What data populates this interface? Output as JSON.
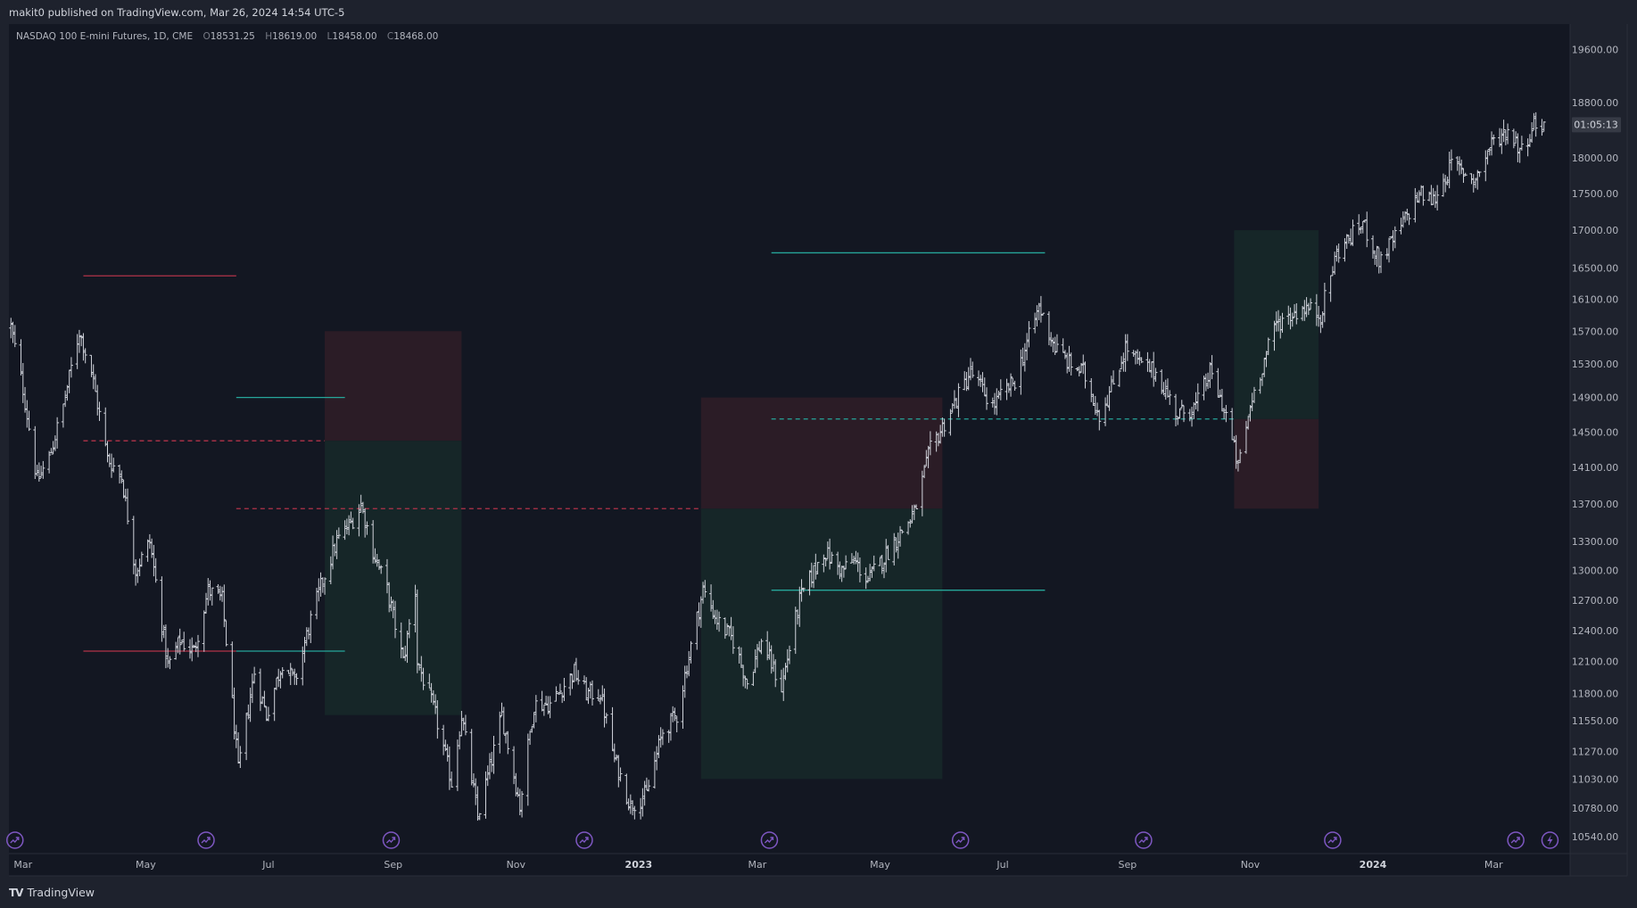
{
  "header": {
    "published": "makit0 published on TradingView.com, Mar 26, 2024 14:54 UTC-5"
  },
  "legend": {
    "symbol": "NASDAQ 100 E-mini Futures, 1D, CME",
    "o_label": "O",
    "o_value": "18531.25",
    "h_label": "H",
    "h_value": "18619.00",
    "l_label": "L",
    "l_value": "18458.00",
    "c_label": "C",
    "c_value": "18468.00"
  },
  "price_axis": {
    "labels": [
      "19600.00",
      "18800.00",
      "18000.00",
      "17500.00",
      "17000.00",
      "16500.00",
      "16100.00",
      "15700.00",
      "15300.00",
      "14900.00",
      "14500.00",
      "14100.00",
      "13700.00",
      "13300.00",
      "13000.00",
      "12700.00",
      "12400.00",
      "12100.00",
      "11800.00",
      "11550.00",
      "11270.00",
      "11030.00",
      "10780.00",
      "10540.00"
    ],
    "countdown": "01:05:13",
    "last_price": 18468
  },
  "time_axis": {
    "labels": [
      {
        "text": "Mar",
        "bold": false
      },
      {
        "text": "May",
        "bold": false
      },
      {
        "text": "Jul",
        "bold": false
      },
      {
        "text": "Sep",
        "bold": false
      },
      {
        "text": "Nov",
        "bold": false
      },
      {
        "text": "2023",
        "bold": true
      },
      {
        "text": "Mar",
        "bold": false
      },
      {
        "text": "May",
        "bold": false
      },
      {
        "text": "Jul",
        "bold": false
      },
      {
        "text": "Sep",
        "bold": false
      },
      {
        "text": "Nov",
        "bold": false
      },
      {
        "text": "2024",
        "bold": true
      },
      {
        "text": "Mar",
        "bold": false
      }
    ]
  },
  "chart_data": {
    "type": "ohlc",
    "symbol": "NQ1!",
    "timeframe": "1D",
    "scale": "log",
    "ylim": [
      10400,
      20000
    ],
    "series": [
      {
        "name": "NASDAQ 100 E-mini Futures",
        "anchors": [
          {
            "d": "2022-02-23",
            "p": 15750
          },
          {
            "d": "2022-03-01",
            "p": 15000
          },
          {
            "d": "2022-03-08",
            "p": 13950
          },
          {
            "d": "2022-03-14",
            "p": 14200
          },
          {
            "d": "2022-03-21",
            "p": 14800
          },
          {
            "d": "2022-03-29",
            "p": 15700
          },
          {
            "d": "2022-04-04",
            "p": 15200
          },
          {
            "d": "2022-04-12",
            "p": 14200
          },
          {
            "d": "2022-04-19",
            "p": 14000
          },
          {
            "d": "2022-04-26",
            "p": 13000
          },
          {
            "d": "2022-05-03",
            "p": 13300
          },
          {
            "d": "2022-05-12",
            "p": 12050
          },
          {
            "d": "2022-05-18",
            "p": 12300
          },
          {
            "d": "2022-05-25",
            "p": 12200
          },
          {
            "d": "2022-06-01",
            "p": 12800
          },
          {
            "d": "2022-06-08",
            "p": 12700
          },
          {
            "d": "2022-06-16",
            "p": 11100
          },
          {
            "d": "2022-06-24",
            "p": 12000
          },
          {
            "d": "2022-06-30",
            "p": 11600
          },
          {
            "d": "2022-07-08",
            "p": 12100
          },
          {
            "d": "2022-07-14",
            "p": 11900
          },
          {
            "d": "2022-07-22",
            "p": 12500
          },
          {
            "d": "2022-07-28",
            "p": 12900
          },
          {
            "d": "2022-08-04",
            "p": 13300
          },
          {
            "d": "2022-08-11",
            "p": 13500
          },
          {
            "d": "2022-08-16",
            "p": 13700
          },
          {
            "d": "2022-08-22",
            "p": 13200
          },
          {
            "d": "2022-08-29",
            "p": 12800
          },
          {
            "d": "2022-09-06",
            "p": 12100
          },
          {
            "d": "2022-09-12",
            "p": 12800
          },
          {
            "d": "2022-09-13",
            "p": 12100
          },
          {
            "d": "2022-09-22",
            "p": 11600
          },
          {
            "d": "2022-09-30",
            "p": 11000
          },
          {
            "d": "2022-10-05",
            "p": 11600
          },
          {
            "d": "2022-10-13",
            "p": 10700
          },
          {
            "d": "2022-10-20",
            "p": 11200
          },
          {
            "d": "2022-10-25",
            "p": 11600
          },
          {
            "d": "2022-11-03",
            "p": 10800
          },
          {
            "d": "2022-11-10",
            "p": 11700
          },
          {
            "d": "2022-11-18",
            "p": 11700
          },
          {
            "d": "2022-11-30",
            "p": 12000
          },
          {
            "d": "2022-12-06",
            "p": 11800
          },
          {
            "d": "2022-12-13",
            "p": 11800
          },
          {
            "d": "2022-12-20",
            "p": 11200
          },
          {
            "d": "2022-12-28",
            "p": 10800
          },
          {
            "d": "2023-01-05",
            "p": 10900
          },
          {
            "d": "2023-01-13",
            "p": 11450
          },
          {
            "d": "2023-01-20",
            "p": 11600
          },
          {
            "d": "2023-02-02",
            "p": 12800
          },
          {
            "d": "2023-02-09",
            "p": 12500
          },
          {
            "d": "2023-02-17",
            "p": 12300
          },
          {
            "d": "2023-02-24",
            "p": 11900
          },
          {
            "d": "2023-03-03",
            "p": 12300
          },
          {
            "d": "2023-03-13",
            "p": 11850
          },
          {
            "d": "2023-03-22",
            "p": 12700
          },
          {
            "d": "2023-04-03",
            "p": 13200
          },
          {
            "d": "2023-04-12",
            "p": 13000
          },
          {
            "d": "2023-04-18",
            "p": 13100
          },
          {
            "d": "2023-04-25",
            "p": 12900
          },
          {
            "d": "2023-05-05",
            "p": 13200
          },
          {
            "d": "2023-05-18",
            "p": 13600
          },
          {
            "d": "2023-05-26",
            "p": 14300
          },
          {
            "d": "2023-06-02",
            "p": 14600
          },
          {
            "d": "2023-06-15",
            "p": 15200
          },
          {
            "d": "2023-06-26",
            "p": 14800
          },
          {
            "d": "2023-07-07",
            "p": 15100
          },
          {
            "d": "2023-07-19",
            "p": 16000
          },
          {
            "d": "2023-07-27",
            "p": 15500
          },
          {
            "d": "2023-08-03",
            "p": 15300
          },
          {
            "d": "2023-08-10",
            "p": 15200
          },
          {
            "d": "2023-08-18",
            "p": 14700
          },
          {
            "d": "2023-08-24",
            "p": 15000
          },
          {
            "d": "2023-08-31",
            "p": 15500
          },
          {
            "d": "2023-09-07",
            "p": 15300
          },
          {
            "d": "2023-09-15",
            "p": 15200
          },
          {
            "d": "2023-09-26",
            "p": 14700
          },
          {
            "d": "2023-10-05",
            "p": 14800
          },
          {
            "d": "2023-10-12",
            "p": 15200
          },
          {
            "d": "2023-10-20",
            "p": 14700
          },
          {
            "d": "2023-10-26",
            "p": 14100
          },
          {
            "d": "2023-11-02",
            "p": 14900
          },
          {
            "d": "2023-11-14",
            "p": 15800
          },
          {
            "d": "2023-11-28",
            "p": 16000
          },
          {
            "d": "2023-12-06",
            "p": 15900
          },
          {
            "d": "2023-12-14",
            "p": 16700
          },
          {
            "d": "2023-12-27",
            "p": 17100
          },
          {
            "d": "2024-01-04",
            "p": 16600
          },
          {
            "d": "2024-01-12",
            "p": 16900
          },
          {
            "d": "2024-01-24",
            "p": 17500
          },
          {
            "d": "2024-01-31",
            "p": 17400
          },
          {
            "d": "2024-02-09",
            "p": 17900
          },
          {
            "d": "2024-02-21",
            "p": 17700
          },
          {
            "d": "2024-02-29",
            "p": 18200
          },
          {
            "d": "2024-03-08",
            "p": 18400
          },
          {
            "d": "2024-03-15",
            "p": 18100
          },
          {
            "d": "2024-03-21",
            "p": 18500
          },
          {
            "d": "2024-03-26",
            "p": 18468
          }
        ]
      }
    ],
    "position_boxes": [
      {
        "name": "short-1",
        "start": "2022-07-29",
        "end": "2022-10-05",
        "stop": 15700,
        "entry": 14400,
        "target": 11600
      },
      {
        "name": "short-2",
        "start": "2023-02-01",
        "end": "2023-06-01",
        "stop": 14900,
        "entry": 13650,
        "target": 11030
      },
      {
        "name": "long-1",
        "start": "2023-10-24",
        "end": "2023-12-05",
        "stop": 13650,
        "entry": 14650,
        "target": 17000
      }
    ],
    "lines": [
      {
        "name": "red-top-line",
        "start": "2022-03-31",
        "end": "2022-06-15",
        "price": 16400,
        "color": "#b2334a",
        "dashed": false
      },
      {
        "name": "red-bottom-line",
        "start": "2022-03-31",
        "end": "2022-06-15",
        "price": 12200,
        "color": "#b2334a",
        "dashed": false
      },
      {
        "name": "teal-top-line",
        "start": "2022-06-15",
        "end": "2022-08-08",
        "price": 14900,
        "color": "#26a69a",
        "dashed": false
      },
      {
        "name": "teal-bottom-line",
        "start": "2022-06-15",
        "end": "2022-08-08",
        "price": 12200,
        "color": "#26a69a",
        "dashed": false
      },
      {
        "name": "red-dashed-1",
        "start": "2022-03-31",
        "end": "2022-07-29",
        "price": 14400,
        "color": "#b2334a",
        "dashed": true
      },
      {
        "name": "red-dashed-2",
        "start": "2022-06-15",
        "end": "2023-02-01",
        "price": 13650,
        "color": "#b2334a",
        "dashed": true
      },
      {
        "name": "teal-line-3",
        "start": "2023-03-08",
        "end": "2023-07-22",
        "price": 16700,
        "color": "#26a69a",
        "dashed": false
      },
      {
        "name": "teal-line-4",
        "start": "2023-03-08",
        "end": "2023-07-22",
        "price": 12800,
        "color": "#26a69a",
        "dashed": false
      },
      {
        "name": "teal-dashed-1",
        "start": "2023-03-08",
        "end": "2023-10-24",
        "price": 14650,
        "color": "#26a69a",
        "dashed": true
      }
    ],
    "event_markers": [
      {
        "d": "2022-02-25",
        "icon": "event-arrow-icon"
      },
      {
        "d": "2022-05-31",
        "icon": "event-arrow-icon"
      },
      {
        "d": "2022-08-31",
        "icon": "event-arrow-icon"
      },
      {
        "d": "2022-12-05",
        "icon": "event-arrow-icon"
      },
      {
        "d": "2023-03-07",
        "icon": "event-arrow-icon"
      },
      {
        "d": "2023-06-10",
        "icon": "event-arrow-icon"
      },
      {
        "d": "2023-09-09",
        "icon": "event-arrow-icon"
      },
      {
        "d": "2023-12-12",
        "icon": "event-arrow-icon"
      },
      {
        "d": "2024-03-12",
        "icon": "event-arrow-icon"
      },
      {
        "d": "2024-03-29",
        "icon": "lightning-icon"
      }
    ]
  },
  "footer": {
    "brand": "TradingView",
    "logo_icon": "tradingview-logo-icon"
  },
  "colors": {
    "background": "#131722",
    "panel": "#1e222d",
    "grid_border": "#2a2e39",
    "bars": "#d1d4dc",
    "stop_zone": "#2b1c26",
    "target_zone": "#162628",
    "red": "#b2334a",
    "teal": "#26a69a",
    "marker": "#7e57c2",
    "axis_text": "#b2b5be"
  }
}
